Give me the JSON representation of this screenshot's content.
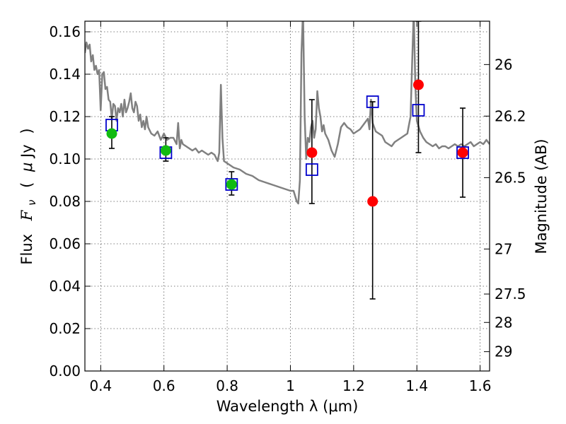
{
  "chart_data": {
    "type": "scatter",
    "xlabel": "Wavelength  λ (μm)",
    "ylabel": "Flux  F_ν  ( μJy )",
    "ylabel_parts": {
      "prefix": "Flux",
      "var": "F",
      "sub": "ν",
      "open": "(",
      "mu": "μ",
      "unit": "Jy",
      "close": ")"
    },
    "y2label": "Magnitude (AB)",
    "xlim": [
      0.35,
      1.63
    ],
    "ylim": [
      0.0,
      0.165
    ],
    "grid": true,
    "x_ticks": [
      0.4,
      0.6,
      0.8,
      1.0,
      1.2,
      1.4,
      1.6
    ],
    "x_tick_labels": [
      "0.4",
      "0.6",
      "0.8",
      "1",
      "1.2",
      "1.4",
      "1.6"
    ],
    "y_ticks": [
      0.0,
      0.02,
      0.04,
      0.06,
      0.08,
      0.1,
      0.12,
      0.14,
      0.16
    ],
    "y_tick_labels": [
      "0.00",
      "0.02",
      "0.04",
      "0.06",
      "0.08",
      "0.10",
      "0.12",
      "0.14",
      "0.16"
    ],
    "mag_ticks": [
      {
        "label": "26",
        "mag": 26.0
      },
      {
        "label": "26.2",
        "mag": 26.2
      },
      {
        "label": "26.5",
        "mag": 26.5
      },
      {
        "label": "27",
        "mag": 27.0
      },
      {
        "label": "27.5",
        "mag": 27.5
      },
      {
        "label": "28",
        "mag": 28.0
      },
      {
        "label": "29",
        "mag": 29.0
      }
    ],
    "colors": {
      "template": "#808080",
      "model_squares": "#0000cc",
      "green_points": "#11bb11",
      "red_points": "#ff0000",
      "error_bars": "#000000"
    },
    "template_spectrum": {
      "x": [
        0.35,
        0.355,
        0.36,
        0.365,
        0.37,
        0.375,
        0.38,
        0.385,
        0.39,
        0.395,
        0.4,
        0.405,
        0.41,
        0.415,
        0.42,
        0.425,
        0.43,
        0.435,
        0.44,
        0.445,
        0.45,
        0.455,
        0.46,
        0.465,
        0.47,
        0.475,
        0.48,
        0.485,
        0.49,
        0.495,
        0.5,
        0.505,
        0.51,
        0.515,
        0.52,
        0.525,
        0.53,
        0.535,
        0.54,
        0.545,
        0.55,
        0.56,
        0.57,
        0.58,
        0.59,
        0.6,
        0.61,
        0.62,
        0.63,
        0.64,
        0.645,
        0.65,
        0.655,
        0.66,
        0.67,
        0.68,
        0.69,
        0.7,
        0.71,
        0.72,
        0.73,
        0.74,
        0.75,
        0.76,
        0.77,
        0.775,
        0.78,
        0.785,
        0.79,
        0.8,
        0.82,
        0.84,
        0.86,
        0.88,
        0.9,
        0.92,
        0.94,
        0.96,
        0.98,
        1.0,
        1.01,
        1.02,
        1.025,
        1.03,
        1.035,
        1.04,
        1.045,
        1.05,
        1.055,
        1.06,
        1.065,
        1.07,
        1.075,
        1.08,
        1.085,
        1.09,
        1.095,
        1.1,
        1.105,
        1.11,
        1.12,
        1.13,
        1.14,
        1.15,
        1.16,
        1.17,
        1.18,
        1.19,
        1.2,
        1.21,
        1.22,
        1.23,
        1.24,
        1.245,
        1.25,
        1.255,
        1.26,
        1.27,
        1.28,
        1.29,
        1.3,
        1.31,
        1.32,
        1.33,
        1.34,
        1.35,
        1.36,
        1.37,
        1.375,
        1.38,
        1.385,
        1.39,
        1.395,
        1.4,
        1.41,
        1.42,
        1.43,
        1.44,
        1.45,
        1.46,
        1.47,
        1.48,
        1.49,
        1.5,
        1.51,
        1.52,
        1.53,
        1.54,
        1.55,
        1.56,
        1.57,
        1.58,
        1.59,
        1.6,
        1.61,
        1.62,
        1.63
      ],
      "y": [
        0.15,
        0.155,
        0.152,
        0.154,
        0.146,
        0.149,
        0.142,
        0.144,
        0.14,
        0.142,
        0.123,
        0.14,
        0.141,
        0.133,
        0.134,
        0.128,
        0.127,
        0.119,
        0.126,
        0.125,
        0.118,
        0.124,
        0.122,
        0.126,
        0.12,
        0.128,
        0.122,
        0.124,
        0.127,
        0.131,
        0.124,
        0.122,
        0.127,
        0.125,
        0.118,
        0.121,
        0.115,
        0.118,
        0.114,
        0.12,
        0.115,
        0.112,
        0.111,
        0.113,
        0.109,
        0.112,
        0.109,
        0.11,
        0.11,
        0.107,
        0.117,
        0.105,
        0.109,
        0.107,
        0.106,
        0.105,
        0.104,
        0.105,
        0.103,
        0.104,
        0.103,
        0.102,
        0.103,
        0.102,
        0.099,
        0.103,
        0.135,
        0.11,
        0.099,
        0.098,
        0.096,
        0.095,
        0.093,
        0.092,
        0.09,
        0.089,
        0.088,
        0.087,
        0.086,
        0.085,
        0.085,
        0.08,
        0.079,
        0.09,
        0.15,
        0.17,
        0.12,
        0.1,
        0.11,
        0.108,
        0.115,
        0.118,
        0.11,
        0.114,
        0.132,
        0.124,
        0.12,
        0.113,
        0.116,
        0.112,
        0.109,
        0.104,
        0.101,
        0.107,
        0.115,
        0.117,
        0.115,
        0.114,
        0.112,
        0.113,
        0.114,
        0.116,
        0.118,
        0.119,
        0.114,
        0.128,
        0.117,
        0.113,
        0.112,
        0.111,
        0.108,
        0.107,
        0.106,
        0.108,
        0.109,
        0.11,
        0.111,
        0.112,
        0.116,
        0.12,
        0.145,
        0.17,
        0.135,
        0.118,
        0.113,
        0.11,
        0.108,
        0.107,
        0.106,
        0.107,
        0.105,
        0.106,
        0.106,
        0.105,
        0.106,
        0.107,
        0.106,
        0.107,
        0.106,
        0.107,
        0.108,
        0.106,
        0.107,
        0.108,
        0.107,
        0.109,
        0.107
      ]
    },
    "model_squares": [
      {
        "x": 0.435,
        "y": 0.116
      },
      {
        "x": 0.606,
        "y": 0.103
      },
      {
        "x": 0.814,
        "y": 0.088
      },
      {
        "x": 1.068,
        "y": 0.095
      },
      {
        "x": 1.26,
        "y": 0.127
      },
      {
        "x": 1.405,
        "y": 0.123
      },
      {
        "x": 1.545,
        "y": 0.103
      }
    ],
    "observed": [
      {
        "x": 0.435,
        "y": 0.112,
        "err_low": 0.105,
        "err_high": 0.12,
        "color": "green"
      },
      {
        "x": 0.606,
        "y": 0.104,
        "err_low": 0.099,
        "err_high": 0.11,
        "color": "green"
      },
      {
        "x": 0.814,
        "y": 0.088,
        "err_low": 0.083,
        "err_high": 0.094,
        "color": "green"
      },
      {
        "x": 1.068,
        "y": 0.103,
        "err_low": 0.079,
        "err_high": 0.128,
        "color": "red"
      },
      {
        "x": 1.26,
        "y": 0.08,
        "err_low": 0.034,
        "err_high": 0.127,
        "color": "red"
      },
      {
        "x": 1.405,
        "y": 0.135,
        "err_low": 0.103,
        "err_high": 0.165,
        "color": "red"
      },
      {
        "x": 1.545,
        "y": 0.103,
        "err_low": 0.082,
        "err_high": 0.124,
        "color": "red"
      }
    ]
  }
}
